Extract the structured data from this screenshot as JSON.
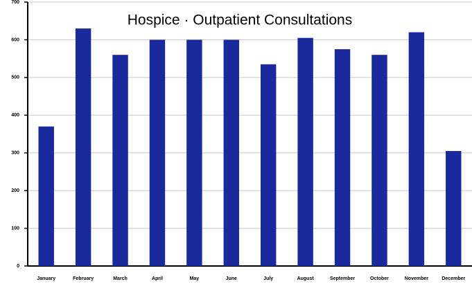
{
  "chart_data": {
    "type": "bar",
    "title": "Hospice · Outpatient Consultations",
    "categories": [
      "January",
      "February",
      "March",
      "April",
      "May",
      "June",
      "July",
      "August",
      "September",
      "October",
      "November",
      "December"
    ],
    "values": [
      370,
      630,
      560,
      600,
      600,
      600,
      535,
      605,
      575,
      560,
      620,
      305
    ],
    "color": "#1a2a9c",
    "ylim": [
      0,
      700
    ],
    "yticks": [
      0,
      100,
      200,
      300,
      400,
      500,
      600,
      700
    ],
    "grid": true
  }
}
